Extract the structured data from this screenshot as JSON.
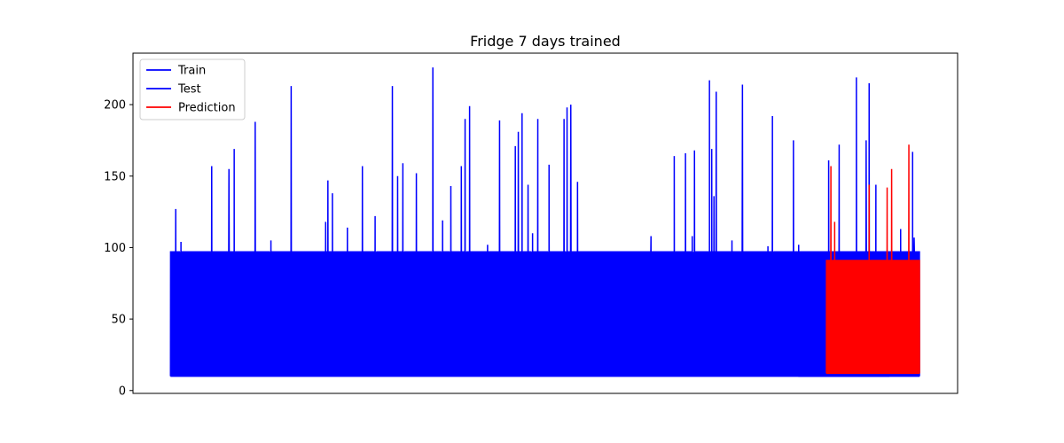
{
  "chart_data": {
    "type": "line",
    "title": "Fridge 7 days trained",
    "xlabel": "",
    "ylabel": "",
    "x_ticks_visible": false,
    "xlim": [
      -0.05,
      1.05
    ],
    "ylim": [
      -2,
      236
    ],
    "y_ticks": [
      0,
      50,
      100,
      150,
      200
    ],
    "grid": false,
    "legend_position": "top-left",
    "series": [
      {
        "name": "Train",
        "color": "#0000ff",
        "x_range": [
          0,
          0.96
        ],
        "baseline_low": 10,
        "baseline_high": 97,
        "cycles": 520,
        "spikes": [
          {
            "x": 0.007,
            "y": 127
          },
          {
            "x": 0.014,
            "y": 104
          },
          {
            "x": 0.055,
            "y": 157
          },
          {
            "x": 0.078,
            "y": 155
          },
          {
            "x": 0.085,
            "y": 169
          },
          {
            "x": 0.113,
            "y": 188
          },
          {
            "x": 0.134,
            "y": 105
          },
          {
            "x": 0.161,
            "y": 213
          },
          {
            "x": 0.207,
            "y": 118
          },
          {
            "x": 0.21,
            "y": 147
          },
          {
            "x": 0.216,
            "y": 138
          },
          {
            "x": 0.236,
            "y": 114
          },
          {
            "x": 0.256,
            "y": 157
          },
          {
            "x": 0.273,
            "y": 122
          },
          {
            "x": 0.296,
            "y": 213
          },
          {
            "x": 0.303,
            "y": 150
          },
          {
            "x": 0.31,
            "y": 159
          },
          {
            "x": 0.328,
            "y": 152
          },
          {
            "x": 0.35,
            "y": 226
          },
          {
            "x": 0.363,
            "y": 119
          },
          {
            "x": 0.374,
            "y": 143
          },
          {
            "x": 0.388,
            "y": 157
          },
          {
            "x": 0.393,
            "y": 190
          },
          {
            "x": 0.399,
            "y": 199
          },
          {
            "x": 0.423,
            "y": 102
          },
          {
            "x": 0.439,
            "y": 189
          },
          {
            "x": 0.46,
            "y": 171
          },
          {
            "x": 0.464,
            "y": 181
          },
          {
            "x": 0.469,
            "y": 194
          },
          {
            "x": 0.477,
            "y": 144
          },
          {
            "x": 0.483,
            "y": 110
          },
          {
            "x": 0.49,
            "y": 190
          },
          {
            "x": 0.505,
            "y": 158
          },
          {
            "x": 0.525,
            "y": 190
          },
          {
            "x": 0.529,
            "y": 198
          },
          {
            "x": 0.534,
            "y": 200
          },
          {
            "x": 0.543,
            "y": 146
          },
          {
            "x": 0.641,
            "y": 108
          },
          {
            "x": 0.672,
            "y": 164
          },
          {
            "x": 0.687,
            "y": 166
          },
          {
            "x": 0.696,
            "y": 108
          },
          {
            "x": 0.699,
            "y": 168
          },
          {
            "x": 0.719,
            "y": 217
          },
          {
            "x": 0.722,
            "y": 169
          },
          {
            "x": 0.725,
            "y": 136
          },
          {
            "x": 0.728,
            "y": 209
          },
          {
            "x": 0.749,
            "y": 105
          },
          {
            "x": 0.763,
            "y": 214
          },
          {
            "x": 0.797,
            "y": 101
          },
          {
            "x": 0.803,
            "y": 192
          },
          {
            "x": 0.831,
            "y": 175
          }
        ]
      },
      {
        "name": "Test",
        "color": "#0000ff",
        "x_range": [
          0.84,
          1.0
        ],
        "baseline_low": 10,
        "baseline_high": 97,
        "cycles": 95,
        "spikes": [
          {
            "x": 0.838,
            "y": 102
          },
          {
            "x": 0.878,
            "y": 161
          },
          {
            "x": 0.892,
            "y": 172
          },
          {
            "x": 0.915,
            "y": 219
          },
          {
            "x": 0.928,
            "y": 175
          },
          {
            "x": 0.932,
            "y": 215
          },
          {
            "x": 0.941,
            "y": 144
          },
          {
            "x": 0.974,
            "y": 113
          },
          {
            "x": 0.99,
            "y": 167
          },
          {
            "x": 0.992,
            "y": 107
          }
        ]
      },
      {
        "name": "Prediction",
        "color": "#ff0000",
        "x_range": [
          0.875,
          1.0
        ],
        "baseline_low": 12,
        "baseline_high": 91,
        "cycles": 80,
        "spikes": [
          {
            "x": 0.881,
            "y": 157
          },
          {
            "x": 0.886,
            "y": 118
          },
          {
            "x": 0.932,
            "y": 144
          },
          {
            "x": 0.956,
            "y": 142
          },
          {
            "x": 0.962,
            "y": 155
          },
          {
            "x": 0.985,
            "y": 172
          },
          {
            "x": 0.991,
            "y": 91
          }
        ]
      }
    ]
  }
}
